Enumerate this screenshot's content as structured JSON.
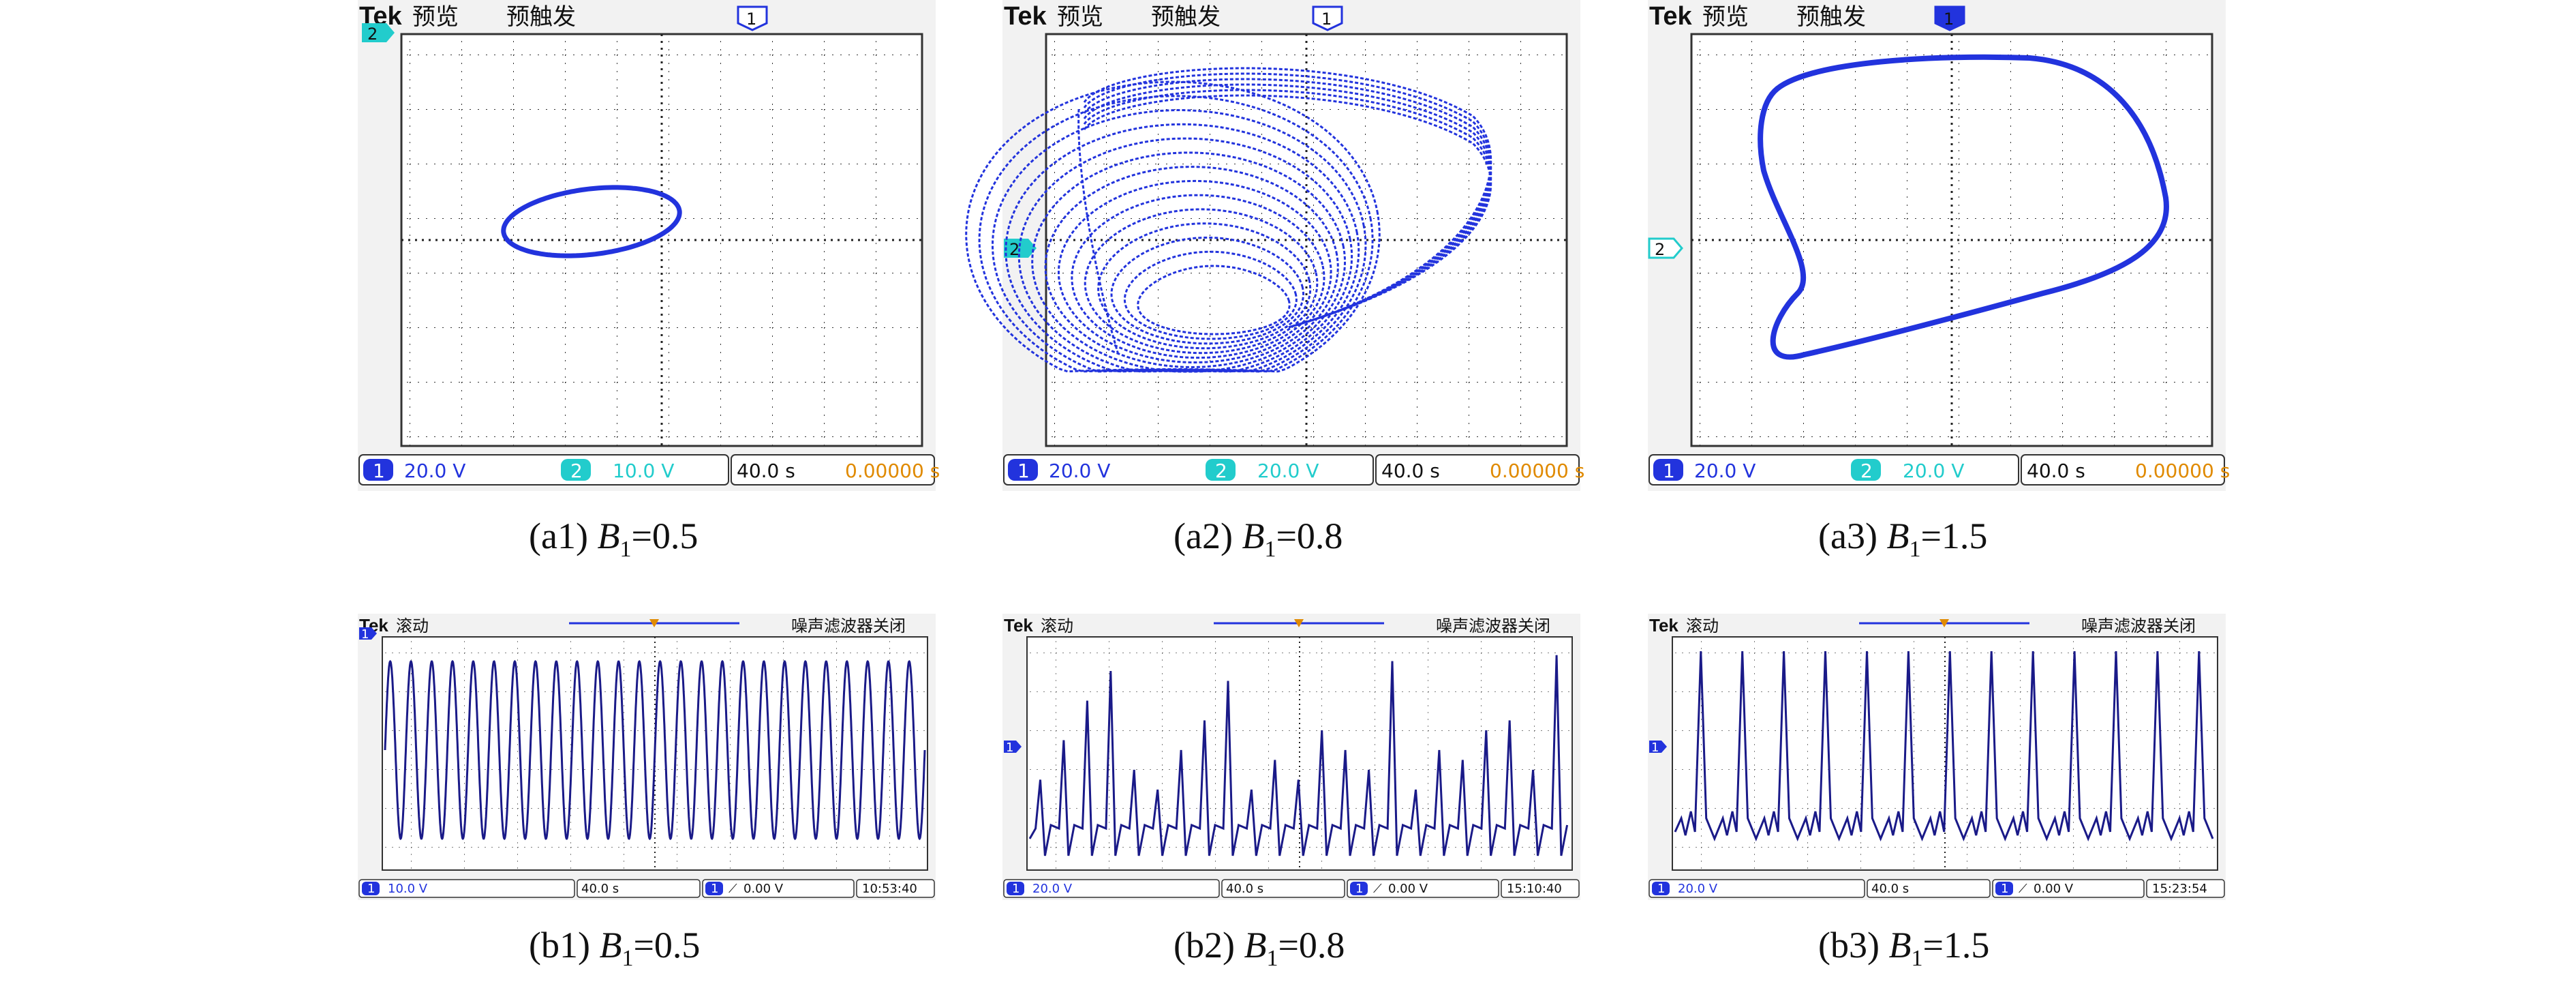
{
  "xy_panels": [
    {
      "id": "a1",
      "header": {
        "brand": "Tek",
        "mode": "预览",
        "trigger": "预触发",
        "trigger_marker": "1",
        "ch2_marker": "2"
      },
      "status": {
        "ch1_label": "1",
        "ch1_scale": "20.0 V",
        "ch2_label": "2",
        "ch2_scale": "10.0 V",
        "timebase": "40.0 s",
        "trigger_pos": "0.00000 s"
      },
      "caption": {
        "label": "(a1)",
        "var": "B",
        "sub": "1",
        "value": "=0.5"
      }
    },
    {
      "id": "a2",
      "header": {
        "brand": "Tek",
        "mode": "预览",
        "trigger": "预触发",
        "trigger_marker": "1",
        "ch2_marker": "2"
      },
      "status": {
        "ch1_label": "1",
        "ch1_scale": "20.0 V",
        "ch2_label": "2",
        "ch2_scale": "20.0 V",
        "timebase": "40.0 s",
        "trigger_pos": "0.00000 s"
      },
      "caption": {
        "label": "(a2)",
        "var": "B",
        "sub": "1",
        "value": "=0.8"
      }
    },
    {
      "id": "a3",
      "header": {
        "brand": "Tek",
        "mode": "预览",
        "trigger": "预触发",
        "trigger_marker": "1",
        "ch2_marker": "2"
      },
      "status": {
        "ch1_label": "1",
        "ch1_scale": "20.0 V",
        "ch2_label": "2",
        "ch2_scale": "20.0 V",
        "timebase": "40.0 s",
        "trigger_pos": "0.00000 s"
      },
      "caption": {
        "label": "(a3)",
        "var": "B",
        "sub": "1",
        "value": "=1.5"
      }
    }
  ],
  "time_panels": [
    {
      "id": "b1",
      "header": {
        "brand": "Tek",
        "mode": "滚动",
        "filter": "噪声滤波器关闭",
        "ch_marker": "1"
      },
      "status": {
        "ch1_label": "1",
        "ch1_scale": "10.0 V",
        "timebase": "40.0 s",
        "trig_label": "1",
        "trig_level": "0.00 V",
        "clock": "10:53:40"
      },
      "caption": {
        "label": "(b1)",
        "var": "B",
        "sub": "1",
        "value": "=0.5"
      }
    },
    {
      "id": "b2",
      "header": {
        "brand": "Tek",
        "mode": "滚动",
        "filter": "噪声滤波器关闭",
        "ch_marker": "1"
      },
      "status": {
        "ch1_label": "1",
        "ch1_scale": "20.0 V",
        "timebase": "40.0 s",
        "trig_label": "1",
        "trig_level": "0.00 V",
        "clock": "15:10:40"
      },
      "caption": {
        "label": "(b2)",
        "var": "B",
        "sub": "1",
        "value": "=0.8"
      }
    },
    {
      "id": "b3",
      "header": {
        "brand": "Tek",
        "mode": "滚动",
        "filter": "噪声滤波器关闭",
        "ch_marker": "1"
      },
      "status": {
        "ch1_label": "1",
        "ch1_scale": "20.0 V",
        "timebase": "40.0 s",
        "trig_label": "1",
        "trig_level": "0.00 V",
        "clock": "15:23:54"
      },
      "caption": {
        "label": "(b3)",
        "var": "B",
        "sub": "1",
        "value": "=1.5"
      }
    }
  ],
  "colors": {
    "trace": "#2233dd",
    "trace_dark": "#1a1a88",
    "ch2": "#22cccc",
    "accent": "#e08a00",
    "screen": "#f2f2f2"
  }
}
